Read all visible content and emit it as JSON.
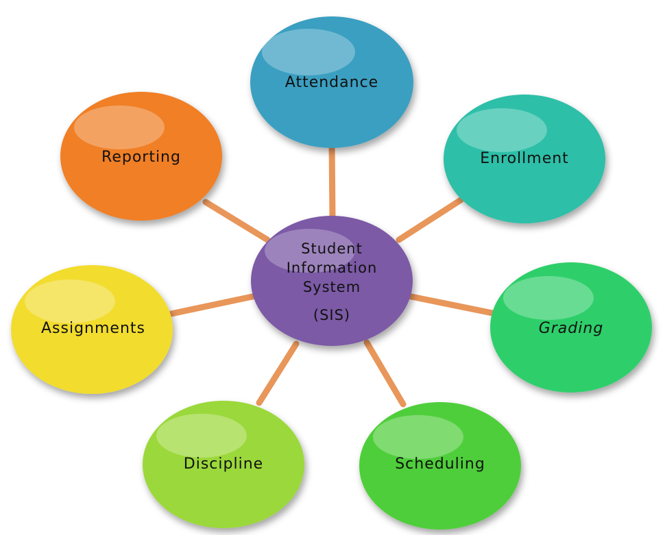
{
  "hub": {
    "lines": [
      "Student",
      "Information",
      "System",
      "(SIS)"
    ],
    "color": "#7b5aa6"
  },
  "connector_color": "#e8965a",
  "nodes": [
    {
      "id": "attendance",
      "label": "Attendance",
      "color": "#3a9fc1"
    },
    {
      "id": "enrollment",
      "label": "Enrollment",
      "color": "#2fbfa8"
    },
    {
      "id": "grading",
      "label": "Grading",
      "color": "#2fcf6a"
    },
    {
      "id": "scheduling",
      "label": "Scheduling",
      "color": "#4fce3a"
    },
    {
      "id": "discipline",
      "label": "Discipline",
      "color": "#9bd83a"
    },
    {
      "id": "assignments",
      "label": "Assignments",
      "color": "#f2dc2e"
    },
    {
      "id": "reporting",
      "label": "Reporting",
      "color": "#f07f28"
    }
  ]
}
